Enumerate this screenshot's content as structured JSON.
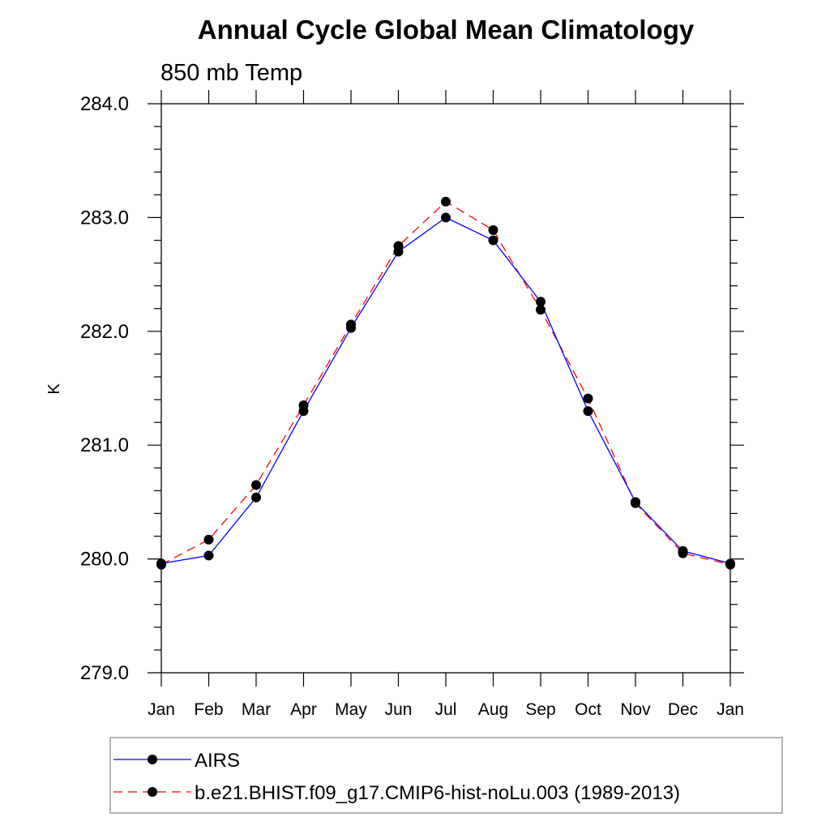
{
  "chart_data": {
    "type": "line",
    "title": "Annual Cycle Global Mean Climatology",
    "subtitle": "850 mb Temp",
    "xlabel": "",
    "ylabel": "K",
    "categories": [
      "Jan",
      "Feb",
      "Mar",
      "Apr",
      "May",
      "Jun",
      "Jul",
      "Aug",
      "Sep",
      "Oct",
      "Nov",
      "Dec",
      "Jan"
    ],
    "ylim": [
      279.0,
      284.0
    ],
    "yticks": [
      "279.0",
      "280.0",
      "281.0",
      "282.0",
      "283.0",
      "284.0"
    ],
    "grid": false,
    "legend_position": "bottom",
    "series": [
      {
        "name": "AIRS",
        "color": "#0000ff",
        "linestyle": "solid",
        "marker": "filled-circle",
        "values": [
          279.96,
          280.03,
          280.54,
          281.3,
          282.03,
          282.7,
          283.0,
          282.8,
          282.26,
          281.3,
          280.5,
          280.07,
          279.96
        ]
      },
      {
        "name": "b.e21.BHIST.f09_g17.CMIP6-hist-noLu.003 (1989-2013)",
        "color": "#ff0000",
        "linestyle": "dashed",
        "marker": "filled-circle",
        "values": [
          279.95,
          280.17,
          280.65,
          281.35,
          282.06,
          282.75,
          283.14,
          282.89,
          282.19,
          281.41,
          280.49,
          280.05,
          279.95
        ]
      }
    ]
  }
}
